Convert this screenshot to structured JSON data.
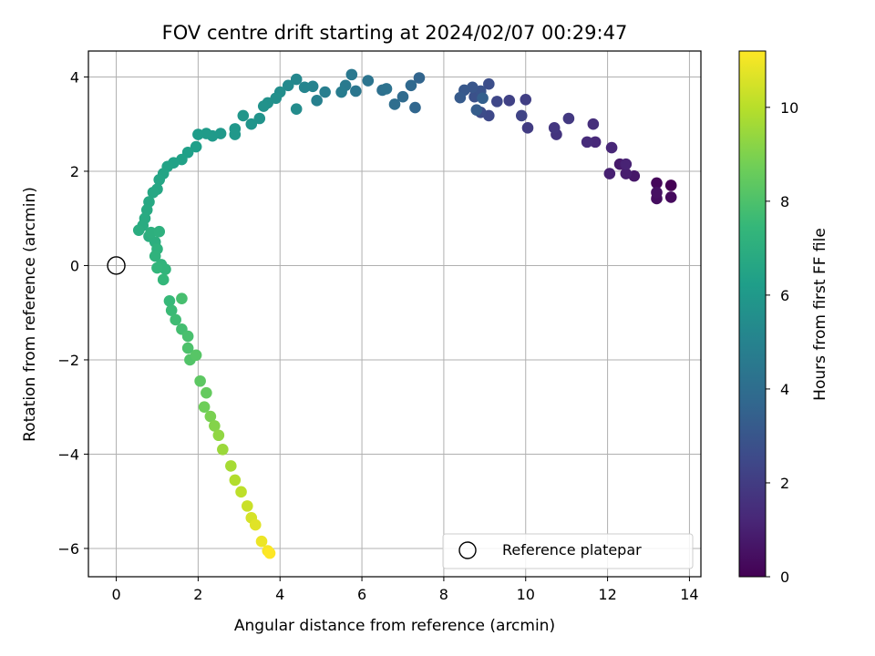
{
  "chart_data": {
    "type": "scatter",
    "title": "FOV centre drift starting at 2024/02/07 00:29:47",
    "xlabel": "Angular distance from reference (arcmin)",
    "ylabel": "Rotation from reference (arcmin)",
    "xlim": [
      -0.68,
      14.28
    ],
    "ylim": [
      -6.6,
      4.55
    ],
    "xticks": [
      0,
      2,
      4,
      6,
      8,
      10,
      12,
      14
    ],
    "yticks": [
      -6,
      -4,
      -2,
      0,
      2,
      4
    ],
    "grid": true,
    "colorbar": {
      "label": "Hours from first FF file",
      "range": [
        0,
        11.2
      ],
      "ticks": [
        0,
        2,
        4,
        6,
        8,
        10
      ],
      "colormap": [
        "#440154",
        "#482878",
        "#3e4989",
        "#31688e",
        "#26828e",
        "#1f9e89",
        "#35b779",
        "#6ece58",
        "#b5de2b",
        "#fde725"
      ]
    },
    "legend": {
      "position": "lower-right",
      "entries": [
        {
          "label": "Reference platepar",
          "marker": "open-circle"
        }
      ]
    },
    "reference_point": {
      "x": 0,
      "y": 0
    },
    "series": [
      {
        "points": [
          [
            13.55,
            1.7,
            0.0
          ],
          [
            13.2,
            1.75,
            0.2
          ],
          [
            13.55,
            1.45,
            0.3
          ],
          [
            13.2,
            1.42,
            0.4
          ],
          [
            13.2,
            1.55,
            0.5
          ],
          [
            12.65,
            1.9,
            0.7
          ],
          [
            12.3,
            2.15,
            0.8
          ],
          [
            12.45,
            1.95,
            0.9
          ],
          [
            12.05,
            1.95,
            1.0
          ],
          [
            12.45,
            2.15,
            1.1
          ],
          [
            12.1,
            2.5,
            1.2
          ],
          [
            11.7,
            2.62,
            1.3
          ],
          [
            11.5,
            2.62,
            1.4
          ],
          [
            11.65,
            3.0,
            1.5
          ],
          [
            10.75,
            2.78,
            1.7
          ],
          [
            10.7,
            2.92,
            1.8
          ],
          [
            11.05,
            3.12,
            1.9
          ],
          [
            10.05,
            2.92,
            2.0
          ],
          [
            10.0,
            3.52,
            2.1
          ],
          [
            9.6,
            3.5,
            2.2
          ],
          [
            9.9,
            3.18,
            2.3
          ],
          [
            9.3,
            3.48,
            2.4
          ],
          [
            9.1,
            3.18,
            2.5
          ],
          [
            8.9,
            3.25,
            2.6
          ],
          [
            9.1,
            3.85,
            2.7
          ],
          [
            8.75,
            3.58,
            2.8
          ],
          [
            8.9,
            3.7,
            2.9
          ],
          [
            8.7,
            3.78,
            3.0
          ],
          [
            8.5,
            3.72,
            3.1
          ],
          [
            8.4,
            3.56,
            3.2
          ],
          [
            8.8,
            3.3,
            3.3
          ],
          [
            8.95,
            3.55,
            3.4
          ],
          [
            7.4,
            3.98,
            3.6
          ],
          [
            7.3,
            3.35,
            3.7
          ],
          [
            7.2,
            3.82,
            3.8
          ],
          [
            7.0,
            3.58,
            3.9
          ],
          [
            6.8,
            3.42,
            4.0
          ],
          [
            6.5,
            3.72,
            4.1
          ],
          [
            6.6,
            3.75,
            4.2
          ],
          [
            6.15,
            3.92,
            4.3
          ],
          [
            5.85,
            3.7,
            4.4
          ],
          [
            5.75,
            4.05,
            4.5
          ],
          [
            5.6,
            3.82,
            4.6
          ],
          [
            5.5,
            3.68,
            4.7
          ],
          [
            5.1,
            3.68,
            4.8
          ],
          [
            4.9,
            3.5,
            4.9
          ],
          [
            4.8,
            3.8,
            5.0
          ],
          [
            4.6,
            3.78,
            5.1
          ],
          [
            4.4,
            3.95,
            5.2
          ],
          [
            4.2,
            3.82,
            5.3
          ],
          [
            4.4,
            3.32,
            5.4
          ],
          [
            4.0,
            3.68,
            5.5
          ],
          [
            3.9,
            3.55,
            5.6
          ],
          [
            3.7,
            3.45,
            5.65
          ],
          [
            3.6,
            3.38,
            5.7
          ],
          [
            3.5,
            3.12,
            5.75
          ],
          [
            3.3,
            3.0,
            5.8
          ],
          [
            3.1,
            3.18,
            5.85
          ],
          [
            2.9,
            2.9,
            5.9
          ],
          [
            2.9,
            2.78,
            5.95
          ],
          [
            2.55,
            2.8,
            6.0
          ],
          [
            2.35,
            2.75,
            6.05
          ],
          [
            2.2,
            2.8,
            6.1
          ],
          [
            2.0,
            2.78,
            6.15
          ],
          [
            1.95,
            2.52,
            6.25
          ],
          [
            1.75,
            2.4,
            6.3
          ],
          [
            1.6,
            2.25,
            6.35
          ],
          [
            1.4,
            2.18,
            6.4
          ],
          [
            1.25,
            2.1,
            6.45
          ],
          [
            1.15,
            1.95,
            6.5
          ],
          [
            1.05,
            1.82,
            6.55
          ],
          [
            1.0,
            1.62,
            6.6
          ],
          [
            0.9,
            1.55,
            6.65
          ],
          [
            0.8,
            1.35,
            6.7
          ],
          [
            0.75,
            1.18,
            6.75
          ],
          [
            0.7,
            1.0,
            6.8
          ],
          [
            0.65,
            0.85,
            6.85
          ],
          [
            0.55,
            0.75,
            6.9
          ],
          [
            0.8,
            0.62,
            6.95
          ],
          [
            0.95,
            0.5,
            7.0
          ],
          [
            0.85,
            0.7,
            7.05
          ],
          [
            1.05,
            0.72,
            7.1
          ],
          [
            1.0,
            0.35,
            7.15
          ],
          [
            0.95,
            0.2,
            7.2
          ],
          [
            1.1,
            0.02,
            7.25
          ],
          [
            1.2,
            -0.08,
            7.3
          ],
          [
            1.0,
            -0.05,
            7.35
          ],
          [
            1.15,
            -0.3,
            7.4
          ],
          [
            1.3,
            -0.75,
            7.5
          ],
          [
            1.35,
            -0.95,
            7.6
          ],
          [
            1.45,
            -1.15,
            7.7
          ],
          [
            1.6,
            -1.35,
            7.8
          ],
          [
            1.6,
            -0.7,
            7.85
          ],
          [
            1.75,
            -1.5,
            7.9
          ],
          [
            1.75,
            -1.75,
            8.0
          ],
          [
            1.8,
            -2.0,
            8.1
          ],
          [
            1.95,
            -1.9,
            8.2
          ],
          [
            2.05,
            -2.45,
            8.35
          ],
          [
            2.2,
            -2.7,
            8.5
          ],
          [
            2.15,
            -3.0,
            8.7
          ],
          [
            2.3,
            -3.2,
            8.9
          ],
          [
            2.4,
            -3.4,
            9.1
          ],
          [
            2.5,
            -3.6,
            9.3
          ],
          [
            2.6,
            -3.9,
            9.5
          ],
          [
            2.8,
            -4.25,
            9.7
          ],
          [
            2.9,
            -4.55,
            9.9
          ],
          [
            3.05,
            -4.8,
            10.1
          ],
          [
            3.2,
            -5.1,
            10.3
          ],
          [
            3.3,
            -5.35,
            10.5
          ],
          [
            3.4,
            -5.5,
            10.7
          ],
          [
            3.55,
            -5.85,
            10.9
          ],
          [
            3.7,
            -6.05,
            11.1
          ],
          [
            3.75,
            -6.1,
            11.2
          ]
        ]
      }
    ]
  }
}
